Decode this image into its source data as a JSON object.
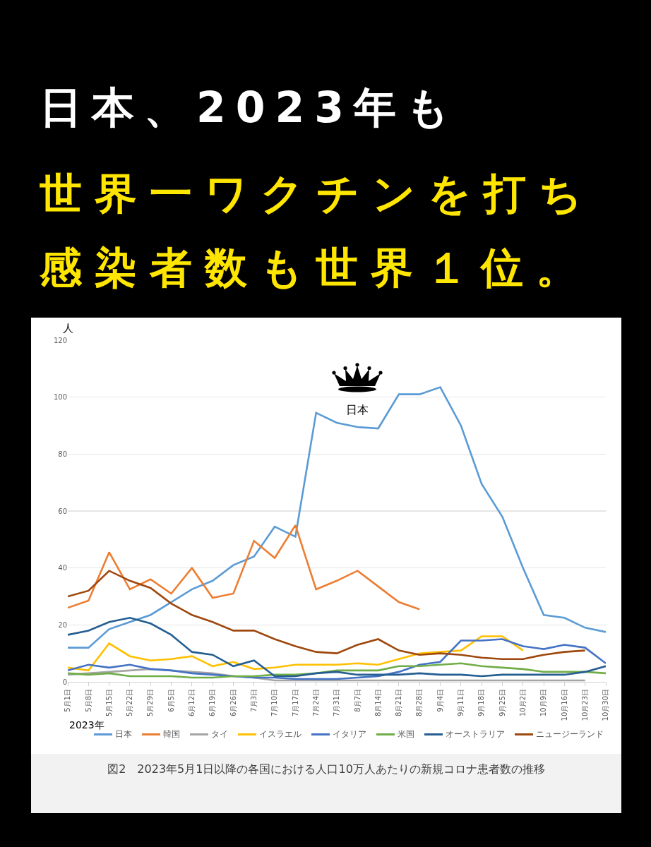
{
  "chart_data": {
    "type": "line",
    "title": "日本、2023年も",
    "subtitle": "世界一ワクチンを打ち感染者数も世界１位。",
    "ylabel": "人",
    "xlabel": "2023年",
    "categories": [
      "5月1日",
      "5月8日",
      "5月15日",
      "5月22日",
      "5月29日",
      "6月5日",
      "6月12日",
      "6月19日",
      "6月26日",
      "7月3日",
      "7月10日",
      "7月17日",
      "7月24日",
      "7月31日",
      "8月7日",
      "8月14日",
      "8月21日",
      "8月28日",
      "9月4日",
      "9月11日",
      "9月18日",
      "9月25日",
      "10月2日",
      "10月9日",
      "10月16日",
      "10月23日",
      "10月30日"
    ],
    "series": [
      {
        "name": "日本",
        "color": "#5b9bd5",
        "values": [
          12,
          12,
          18.5,
          21,
          23.5,
          28,
          32.5,
          35.5,
          41,
          44,
          54.5,
          51,
          94.5,
          91,
          89.5,
          89,
          101,
          101,
          103.5,
          90,
          69.5,
          58,
          40,
          23.5,
          22.5,
          19,
          17.5
        ]
      },
      {
        "name": "韓国",
        "color": "#ed7d31",
        "values": [
          26,
          28.5,
          45.5,
          32.5,
          36,
          31,
          40,
          29.5,
          31,
          49.5,
          43.5,
          55,
          32.5,
          35.5,
          39,
          33.5,
          28,
          25.5,
          null,
          null,
          null,
          null,
          null,
          null,
          null,
          null,
          null
        ]
      },
      {
        "name": "タイ",
        "color": "#a5a5a5",
        "values": [
          2.5,
          3,
          3.5,
          4,
          4.5,
          4,
          3.5,
          3,
          2,
          1.5,
          0.5,
          0.5,
          0.5,
          0.5,
          0.5,
          0.5,
          0.5,
          0.5,
          0.5,
          0.5,
          0.5,
          0.5,
          0.5,
          0.5,
          0.5,
          0.5,
          null
        ]
      },
      {
        "name": "イスラエル",
        "color": "#ffc000",
        "values": [
          5,
          4,
          13.5,
          9,
          7.5,
          8,
          9,
          5.5,
          7,
          4.5,
          5,
          6,
          6,
          6,
          6.5,
          6,
          8,
          10,
          10.5,
          11,
          16,
          16,
          11,
          null,
          null,
          null,
          null
        ]
      },
      {
        "name": "イタリア",
        "color": "#4472c4",
        "values": [
          4,
          6,
          5,
          6,
          4.5,
          4,
          3,
          2.5,
          2,
          1.5,
          1.5,
          1,
          1,
          1,
          1.5,
          2,
          3.5,
          6,
          7,
          14.5,
          14.5,
          15,
          12.5,
          11.5,
          13,
          12,
          6.5
        ]
      },
      {
        "name": "米国",
        "color": "#70ad47",
        "values": [
          3,
          2.5,
          3,
          2,
          2,
          2,
          1.5,
          1.5,
          2,
          2,
          2.5,
          2.5,
          3,
          4,
          4,
          4,
          5.5,
          5.5,
          6,
          6.5,
          5.5,
          5,
          4.5,
          3.5,
          3.5,
          3.5,
          3
        ]
      },
      {
        "name": "オーストラリア",
        "color": "#255e91",
        "values": [
          16.5,
          18,
          21,
          22.5,
          20.5,
          16.5,
          10.5,
          9.5,
          5.5,
          7.5,
          2,
          2,
          3,
          3.5,
          2.5,
          2.5,
          2.5,
          3,
          2.5,
          2.5,
          2,
          2.5,
          2.5,
          2.5,
          2.5,
          3.5,
          5.5
        ]
      },
      {
        "name": "ニュージーランド",
        "color": "#9e480e",
        "values": [
          30,
          32,
          39,
          35.5,
          33,
          27.5,
          23.5,
          21,
          18,
          18,
          15,
          12.5,
          10.5,
          10,
          13,
          15,
          11,
          9.5,
          10,
          9.5,
          8.5,
          8,
          8,
          9.5,
          10.5,
          11,
          null
        ]
      }
    ],
    "ylim": [
      0,
      120
    ],
    "yticks": [
      0,
      20,
      40,
      60,
      80,
      100,
      120
    ],
    "grid": "y",
    "legend": "bottom",
    "marker": "none",
    "line_style": "solid",
    "annotations": [
      {
        "text": "日本",
        "x": "8月7日",
        "y": 89.5
      },
      "図2　2023年5月1日以降の各国における人口10万人あたりの新規コロナ患者数の推移"
    ]
  }
}
